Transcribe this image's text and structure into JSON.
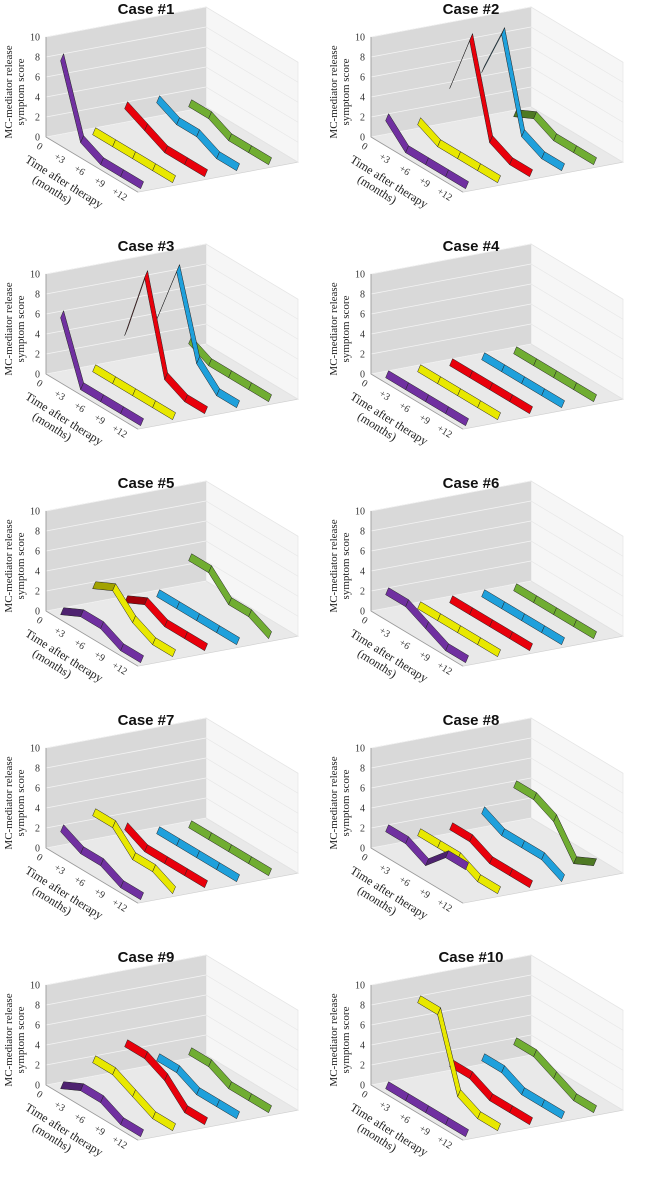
{
  "chart_data": {
    "type": "3d-ribbon",
    "ylabel": [
      "MC-mediator release",
      "symptom score"
    ],
    "xlabel": [
      "Time after therapy",
      "(months)"
    ],
    "x_ticks": [
      "0",
      "+3",
      "+6",
      "+9",
      "+12"
    ],
    "y_ticks": [
      "0",
      "2",
      "4",
      "6",
      "8",
      "10"
    ],
    "ylim": [
      0,
      10
    ],
    "series_colors": [
      "#7030A0",
      "#E8E800",
      "#E8000B",
      "#1FA0DB",
      "#70AD32"
    ],
    "cases": [
      {
        "title": "Case #1",
        "series": [
          {
            "values": [
              8,
              1,
              0,
              0,
              0
            ]
          },
          {
            "values": [
              0,
              0,
              0,
              0,
              0
            ]
          },
          {
            "values": [
              2,
              1,
              0,
              0,
              0
            ]
          },
          {
            "values": [
              2,
              1,
              1,
              0,
              0
            ]
          },
          {
            "values": [
              1,
              1,
              0,
              0,
              0
            ]
          }
        ]
      },
      {
        "title": "Case #2",
        "series": [
          {
            "values": [
              2,
              0,
              0,
              0,
              0
            ]
          },
          {
            "values": [
              1,
              0,
              0,
              0,
              0
            ]
          },
          {
            "values": [
              4,
              10,
              1,
              0,
              0
            ]
          },
          {
            "values": [
              5,
              10,
              1,
              0,
              0
            ]
          },
          {
            "values": [
              0,
              1,
              0,
              0,
              0
            ]
          }
        ]
      },
      {
        "title": "Case #3",
        "series": [
          {
            "values": [
              6,
              0,
              0,
              0,
              0
            ]
          },
          {
            "values": [
              0,
              0,
              0,
              0,
              0
            ]
          },
          {
            "values": [
              3,
              10,
              1,
              0,
              0
            ]
          },
          {
            "values": [
              4,
              10,
              2,
              0,
              0
            ]
          },
          {
            "values": [
              1,
              0,
              0,
              0,
              0
            ]
          }
        ]
      },
      {
        "title": "Case #4",
        "series": [
          {
            "values": [
              0,
              0,
              0,
              0,
              0
            ]
          },
          {
            "values": [
              0,
              0,
              0,
              0,
              0
            ]
          },
          {
            "values": [
              0,
              0,
              0,
              0,
              0
            ]
          },
          {
            "values": [
              0,
              0,
              0,
              0,
              0
            ]
          },
          {
            "values": [
              0,
              0,
              0,
              0,
              0
            ]
          }
        ]
      },
      {
        "title": "Case #5",
        "series": [
          {
            "values": [
              0,
              1,
              1,
              0,
              0
            ]
          },
          {
            "values": [
              2,
              3,
              1,
              0,
              0
            ]
          },
          {
            "values": [
              0,
              1,
              0,
              0,
              0
            ]
          },
          {
            "values": [
              0,
              0,
              0,
              0,
              0
            ]
          },
          {
            "values": [
              3,
              3,
              1,
              1,
              0
            ]
          }
        ]
      },
      {
        "title": "Case #6",
        "series": [
          {
            "values": [
              2,
              2,
              1,
              0,
              0
            ]
          },
          {
            "values": [
              0,
              0,
              0,
              0,
              0
            ]
          },
          {
            "values": [
              0,
              0,
              0,
              0,
              0
            ]
          },
          {
            "values": [
              0,
              0,
              0,
              0,
              0
            ]
          },
          {
            "values": [
              0,
              0,
              0,
              0,
              0
            ]
          }
        ]
      },
      {
        "title": "Case #7",
        "series": [
          {
            "values": [
              2,
              1,
              1,
              0,
              0
            ]
          },
          {
            "values": [
              3,
              3,
              1,
              1,
              0
            ]
          },
          {
            "values": [
              1,
              0,
              0,
              0,
              0
            ]
          },
          {
            "values": [
              0,
              0,
              0,
              0,
              0
            ]
          },
          {
            "values": [
              0,
              0,
              0,
              0,
              0
            ]
          }
        ]
      },
      {
        "title": "Case #8",
        "series": [
          {
            "values": [
              2,
              2,
              1,
              3,
              3
            ]
          },
          {
            "values": [
              1,
              1,
              1,
              0,
              0
            ]
          },
          {
            "values": [
              1,
              1,
              0,
              0,
              0
            ]
          },
          {
            "values": [
              2,
              1,
              1,
              1,
              0
            ]
          },
          {
            "values": [
              4,
              4,
              3,
              0,
              1
            ]
          }
        ]
      },
      {
        "title": "Case #9",
        "series": [
          {
            "values": [
              0,
              1,
              1,
              0,
              0
            ]
          },
          {
            "values": [
              2,
              2,
              1,
              0,
              0
            ]
          },
          {
            "values": [
              3,
              3,
              2,
              0,
              0
            ]
          },
          {
            "values": [
              1,
              1,
              0,
              0,
              0
            ]
          },
          {
            "values": [
              1,
              1,
              0,
              0,
              0
            ]
          }
        ]
      },
      {
        "title": "Case #10",
        "series": [
          {
            "values": [
              0,
              0,
              0,
              0,
              0
            ]
          },
          {
            "values": [
              8,
              8,
              1,
              0,
              0
            ]
          },
          {
            "values": [
              1,
              1,
              0,
              0,
              0
            ]
          },
          {
            "values": [
              1,
              1,
              0,
              0,
              0
            ]
          },
          {
            "values": [
              2,
              2,
              1,
              0,
              0
            ]
          }
        ]
      }
    ]
  }
}
